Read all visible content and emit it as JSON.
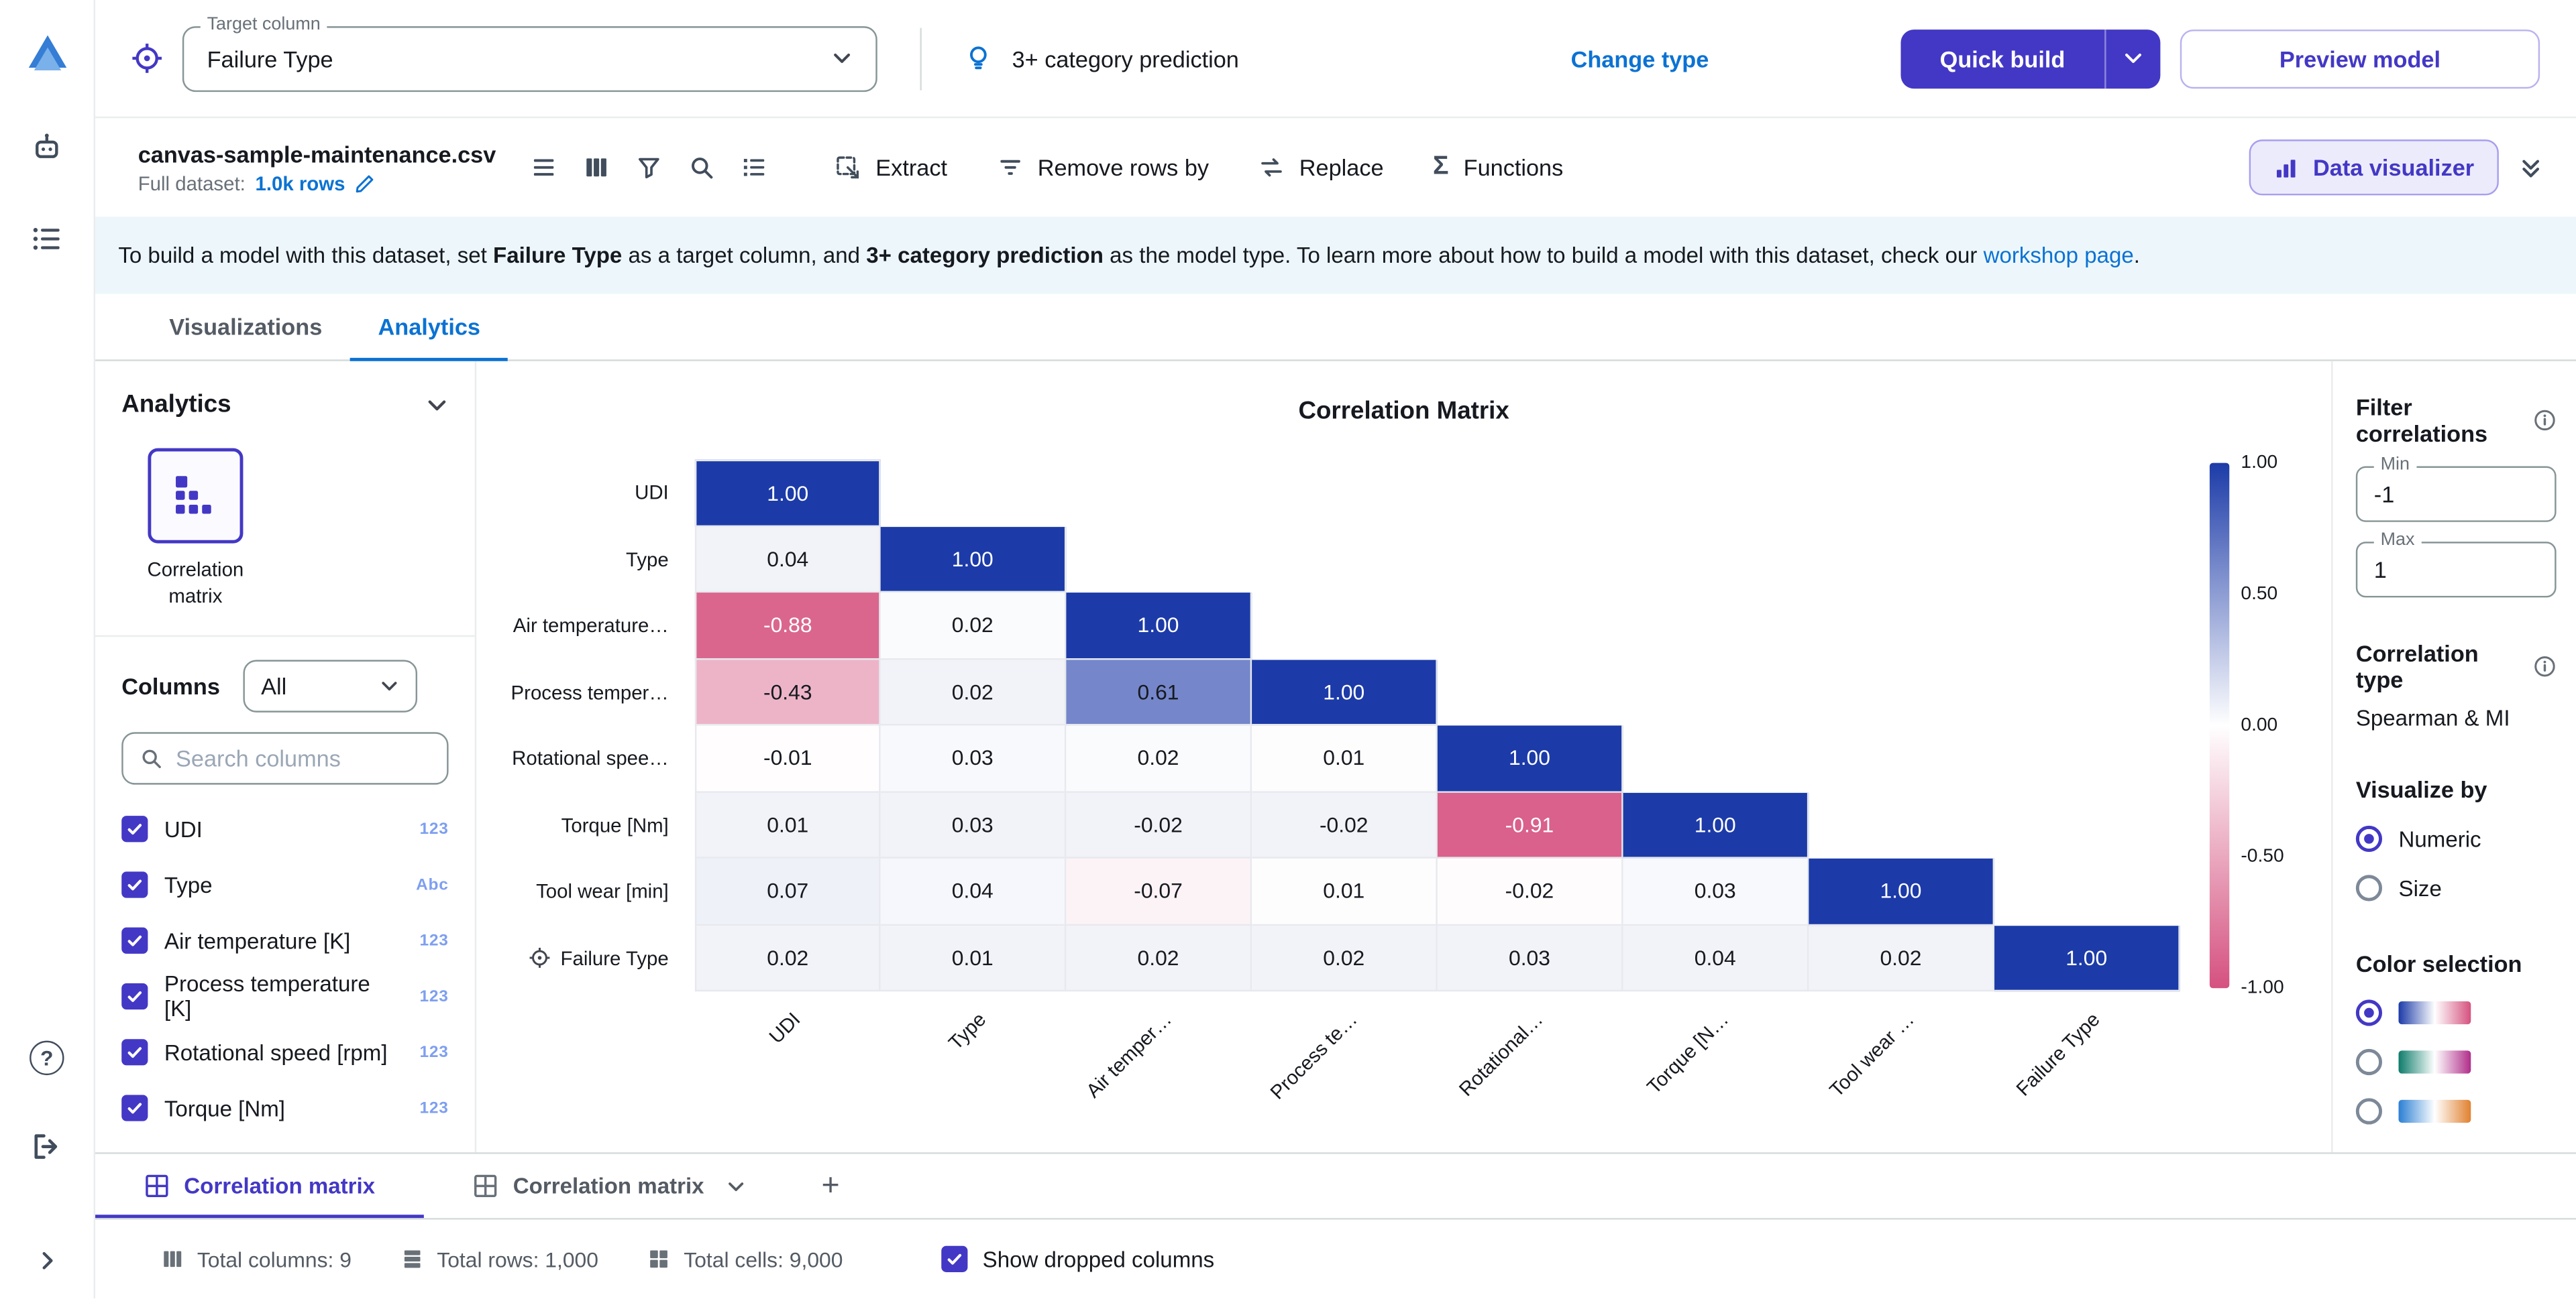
{
  "colors": {
    "primary": "#4338c5",
    "link": "#0b72d3"
  },
  "icons": {
    "target": "crosshair",
    "model_type": "lightbulb",
    "search": "magnifier",
    "edit": "pencil",
    "functions": "sigma",
    "data_visualizer": "bar-chart",
    "collapse": "double-chevron-down",
    "help": "question-circle",
    "logout": "exit-door",
    "correlation_matrix": "matrix-squares"
  },
  "topbar": {
    "target_label": "Target column",
    "target_value": "Failure Type",
    "model_type": "3+ category prediction",
    "change_type": "Change type",
    "quick_build": "Quick build",
    "preview_model": "Preview model"
  },
  "dataset_bar": {
    "filename": "canvas-sample-maintenance.csv",
    "full_dataset_label": "Full dataset:",
    "rows_link": "1.0k rows",
    "actions": [
      "Extract",
      "Remove rows by",
      "Replace",
      "Functions"
    ],
    "data_visualizer": "Data visualizer"
  },
  "banner": {
    "p1": "To build a model with this dataset, set ",
    "p2": "Failure Type",
    "p3": " as a target column, and ",
    "p4": "3+ category prediction",
    "p5": " as the model type. To learn more about how to build a model with this dataset, check our ",
    "p6": "workshop page",
    "p7": "."
  },
  "tabs": [
    {
      "label": "Visualizations",
      "active": false
    },
    {
      "label": "Analytics",
      "active": true
    }
  ],
  "left_panel": {
    "heading": "Analytics",
    "tool_label": "Correlation matrix",
    "columns_label": "Columns",
    "filter_value": "All",
    "search_placeholder": "Search columns",
    "items": [
      {
        "label": "UDI",
        "type": "123",
        "checked": true
      },
      {
        "label": "Type",
        "type": "Abc",
        "checked": true
      },
      {
        "label": "Air temperature [K]",
        "type": "123",
        "checked": true
      },
      {
        "label": "Process temperature [K]",
        "type": "123",
        "checked": true
      },
      {
        "label": "Rotational speed [rpm]",
        "type": "123",
        "checked": true
      },
      {
        "label": "Torque [Nm]",
        "type": "123",
        "checked": true
      }
    ]
  },
  "chart_data": {
    "type": "heatmap",
    "title": "Correlation Matrix",
    "rows": [
      "UDI",
      "Type",
      "Air temperature…",
      "Process temper…",
      "Rotational spee…",
      "Torque [Nm]",
      "Tool wear [min]",
      "Failure Type"
    ],
    "cols": [
      "UDI",
      "Type",
      "Air temper…",
      "Process te…",
      "Rotational…",
      "Torque [N…",
      "Tool wear …",
      "Failure Type"
    ],
    "target_row": 7,
    "matrix": [
      [
        1.0
      ],
      [
        0.04,
        1.0
      ],
      [
        -0.88,
        0.02,
        1.0
      ],
      [
        -0.43,
        0.02,
        0.61,
        1.0
      ],
      [
        -0.01,
        0.03,
        0.02,
        0.01,
        1.0
      ],
      [
        0.01,
        0.03,
        -0.02,
        -0.02,
        -0.91,
        1.0
      ],
      [
        0.07,
        0.04,
        -0.07,
        0.01,
        -0.02,
        0.03,
        1.0
      ],
      [
        0.02,
        0.01,
        0.02,
        0.02,
        0.03,
        0.04,
        0.02,
        1.0
      ]
    ],
    "vmin": -1,
    "vmax": 1,
    "colorbar_ticks": [
      "1.00",
      "0.50",
      "0.00",
      "-0.50",
      "-1.00"
    ],
    "colormap": {
      "positive": "#1c3ba8",
      "negative": "#d5517f",
      "mid": "#ffffff"
    }
  },
  "settings_panel": {
    "filter_heading": "Filter correlations",
    "min_label": "Min",
    "min_value": "-1",
    "max_label": "Max",
    "max_value": "1",
    "correlation_type_heading": "Correlation type",
    "correlation_type_value": "Spearman & MI",
    "visualize_by_heading": "Visualize by",
    "visualize_options": [
      {
        "label": "Numeric",
        "selected": true
      },
      {
        "label": "Size",
        "selected": false
      }
    ],
    "color_selection_heading": "Color selection",
    "color_options": [
      {
        "gradient": [
          "#1c3ba8",
          "#d5517f"
        ],
        "selected": true
      },
      {
        "gradient": [
          "#0e7c6b",
          "#b02d8a"
        ],
        "selected": false
      },
      {
        "gradient": [
          "#2b7fd4",
          "#e0812f"
        ],
        "selected": false
      }
    ]
  },
  "bottom_tabs": {
    "tabs": [
      {
        "label": "Correlation matrix",
        "active": true
      },
      {
        "label": "Correlation matrix",
        "active": false
      }
    ],
    "add_label": "+"
  },
  "statusbar": {
    "total_columns": "Total columns: 9",
    "total_rows": "Total rows: 1,000",
    "total_cells": "Total cells: 9,000",
    "show_dropped": "Show dropped columns"
  }
}
